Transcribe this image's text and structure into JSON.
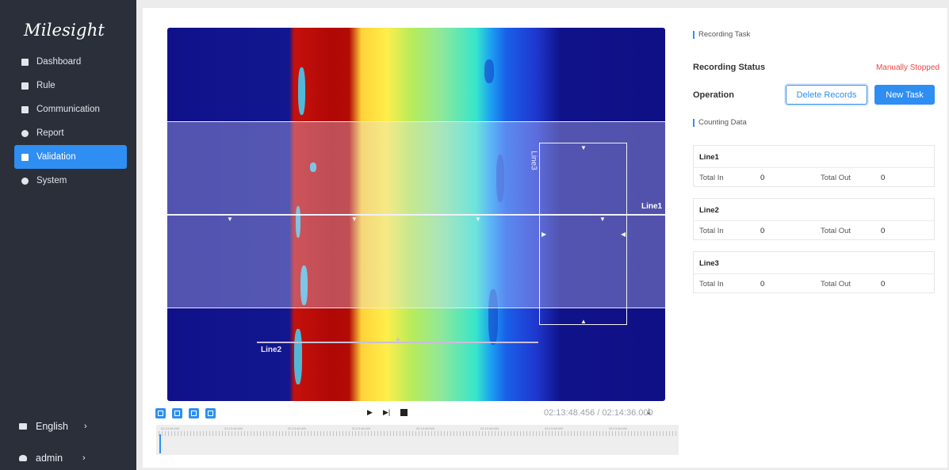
{
  "brand": {
    "logo": "Milesight"
  },
  "sidebar": {
    "items": [
      {
        "label": "Dashboard",
        "icon": "dashboard-icon"
      },
      {
        "label": "Rule",
        "icon": "rule-icon"
      },
      {
        "label": "Communication",
        "icon": "communication-icon"
      },
      {
        "label": "Report",
        "icon": "report-icon"
      },
      {
        "label": "Validation",
        "icon": "validation-icon",
        "active": true
      },
      {
        "label": "System",
        "icon": "gear-icon"
      }
    ],
    "language": "English",
    "user": "admin"
  },
  "video": {
    "line1_label": "Line1",
    "line2_label": "Line2",
    "line3_label": "Line3"
  },
  "player": {
    "time": "02:13:48.456 / 02:14:36.000",
    "timeline_labels": [
      "02:13:48.000",
      "02:13:48.000",
      "02:13:48.000",
      "02:13:48.000",
      "04:13:48.000",
      "02:13:48.000",
      "05:13:48.000",
      "05:13:48.000"
    ]
  },
  "panel": {
    "recording_task": "Recording Task",
    "recording_status_label": "Recording Status",
    "recording_status_value": "Manually Stopped",
    "operation_label": "Operation",
    "delete_button": "Delete Records",
    "new_task_button": "New Task",
    "counting_data": "Counting Data"
  },
  "lines": [
    {
      "name": "Line1",
      "in_label": "Total In",
      "in": "0",
      "out_label": "Total Out",
      "out": "0"
    },
    {
      "name": "Line2",
      "in_label": "Total In",
      "in": "0",
      "out_label": "Total Out",
      "out": "0"
    },
    {
      "name": "Line3",
      "in_label": "Total In",
      "in": "0",
      "out_label": "Total Out",
      "out": "0"
    }
  ],
  "colors": {
    "accent": "#2f8ef2",
    "sidebar": "#2a2f3a",
    "status": "#ee4444"
  }
}
